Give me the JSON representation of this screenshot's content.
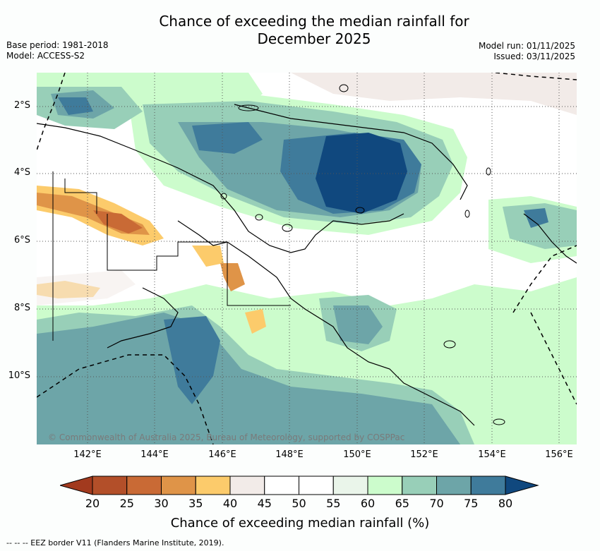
{
  "title_line1": "Chance of exceeding the median rainfall for",
  "title_line2": "December 2025",
  "base_period": "Base period: 1981-2018",
  "model": "Model: ACCESS-S2",
  "model_run": "Model run: 01/11/2025",
  "issued": "Issued: 03/11/2025",
  "copyright": "© Commonwealth of Australia 2025, Bureau of Meteorology, supported by COSPPac",
  "lat_labels": [
    "2°S",
    "4°S",
    "6°S",
    "8°S",
    "10°S"
  ],
  "lon_labels": [
    "142°E",
    "144°E",
    "146°E",
    "148°E",
    "150°E",
    "152°E",
    "154°E",
    "156°E"
  ],
  "colorbar": {
    "ticks": [
      "20",
      "25",
      "30",
      "35",
      "40",
      "45",
      "50",
      "55",
      "60",
      "65",
      "70",
      "75",
      "80"
    ],
    "colors": [
      "#a23a1e",
      "#b34f29",
      "#c96a35",
      "#df9448",
      "#fccb6b",
      "#f2ebe8",
      "#ffffff",
      "#ffffff",
      "#eaf5ea",
      "#ccfccc",
      "#98cfb8",
      "#6da5a8",
      "#3f7b9b",
      "#10487e"
    ],
    "label": "Chance of exceeding median rainfall (%)"
  },
  "footnote": "--  --  -- EEZ border V11 (Flanders Marine Institute, 2019)."
}
